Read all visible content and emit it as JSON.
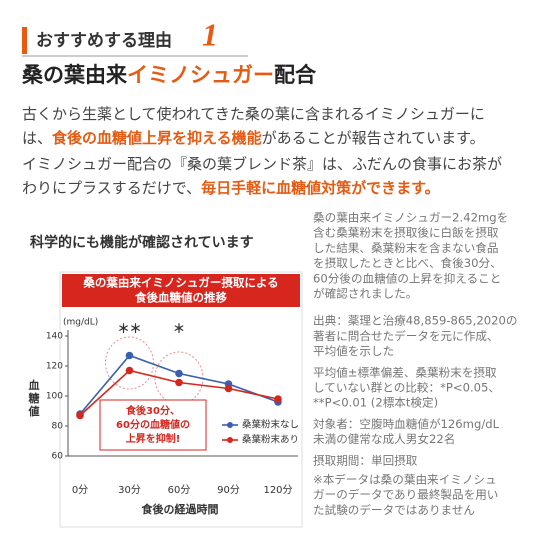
{
  "header": {
    "title": "おすすめする理由",
    "number": "1"
  },
  "heading": {
    "parts": [
      {
        "text": "桑の葉由来",
        "highlight": false
      },
      {
        "text": "イミノシュガー",
        "highlight": true
      },
      {
        "text": "配合",
        "highlight": false
      }
    ]
  },
  "paragraphs": [
    [
      [
        {
          "text": "古くから生薬として使われてきた桑の葉に含まれるイミノシュガーに",
          "highlight": false
        }
      ],
      [
        {
          "text": "は、",
          "highlight": false
        },
        {
          "text": "食後の血糖値上昇を抑える機能",
          "highlight": true
        },
        {
          "text": "があることが報告されています。",
          "highlight": false
        }
      ]
    ],
    [
      [
        {
          "text": "イミノシュガー配合の『桑の葉ブレンド茶』は、ふだんの食事にお茶が",
          "highlight": false
        }
      ],
      [
        {
          "text": "わりにプラスするだけで、",
          "highlight": false
        },
        {
          "text": "毎日手軽に血糖値対策ができます。",
          "highlight": true
        }
      ]
    ]
  ],
  "subheading": "科学的にも機能が確認されています",
  "notes": [
    [
      "桑の葉由来イミノシュガー2.42mgを",
      "含む桑葉粉末を摂取後に白飯を摂取",
      "した結果、桑葉粉末を含まない食品",
      "を摂取したときと比べ、食後30分、",
      "60分後の血糖値の上昇を抑えること",
      "が確認されました。"
    ],
    [
      "出典：薬理と治療48,859-865,2020の",
      "著者に問合せたデータを元に作成、",
      "平均値を示した"
    ],
    [
      "平均値±標準偏差、桑葉粉末を摂取",
      "していない群との比較：*P<0.05、",
      "**P<0.01 (2標本t検定)"
    ],
    [
      "対象者：空腹時血糖値が126mg/dL",
      "未満の健常な成人男女22名"
    ],
    [
      "摂取期間：単回摂取"
    ],
    [
      "※本データは桑の葉由来イミノシュ",
      "ガーのデータであり最終製品を用い",
      "た試験のデータではありません"
    ]
  ],
  "chart_data": {
    "type": "line",
    "title": [
      "桑の葉由来イミノシュガー摂取による",
      "食後血糖値の推移"
    ],
    "y_unit": "(mg/dL)",
    "ylabel": "血糖値",
    "xlabel": "食後の経過時間",
    "categories": [
      "0分",
      "30分",
      "60分",
      "90分",
      "120分"
    ],
    "series": [
      {
        "name": "桑葉粉末なし",
        "color": "#3a5fb0",
        "values": [
          88,
          127,
          115,
          108,
          96
        ]
      },
      {
        "name": "桑葉粉末あり",
        "color": "#d7261e",
        "values": [
          87,
          117,
          109,
          105,
          98
        ]
      }
    ],
    "significance": [
      null,
      "＊＊",
      "＊",
      null,
      null
    ],
    "callout": [
      "食後30分、",
      "60分の血糖値の",
      "上昇を抑制!"
    ],
    "ylim": [
      60,
      140
    ],
    "yticks": [
      140,
      120,
      100,
      80,
      60
    ]
  }
}
